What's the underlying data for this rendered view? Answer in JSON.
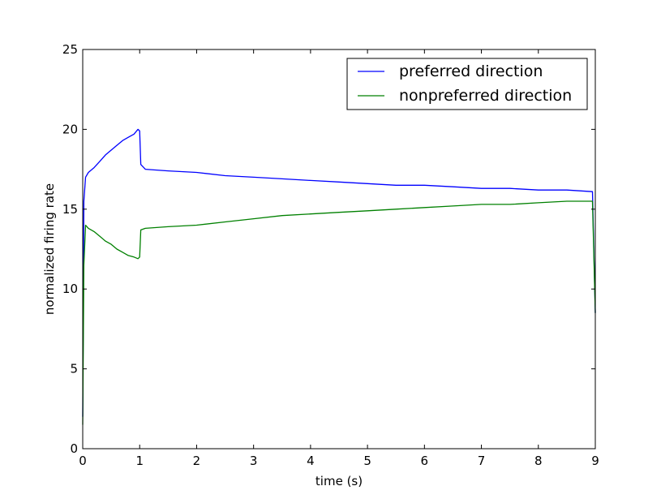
{
  "chart_data": {
    "type": "line",
    "xlabel": "time (s)",
    "ylabel": "normalized firing rate",
    "xlim": [
      0,
      9
    ],
    "ylim": [
      0,
      25
    ],
    "xticks": [
      "0",
      "1",
      "2",
      "3",
      "4",
      "5",
      "6",
      "7",
      "8",
      "9"
    ],
    "yticks": [
      "0",
      "5",
      "10",
      "15",
      "20",
      "25"
    ],
    "grid": false,
    "legend_position": "top-right",
    "series": [
      {
        "name": "preferred direction",
        "color": "#0000ff",
        "x": [
          0,
          0.02,
          0.05,
          0.1,
          0.2,
          0.3,
          0.4,
          0.5,
          0.6,
          0.7,
          0.8,
          0.9,
          0.97,
          1.0,
          1.02,
          1.1,
          1.5,
          2.0,
          2.5,
          3.0,
          3.5,
          4.0,
          4.5,
          5.0,
          5.5,
          6.0,
          6.5,
          7.0,
          7.5,
          8.0,
          8.5,
          8.95,
          9.0
        ],
        "y": [
          2.0,
          15.5,
          17.0,
          17.3,
          17.6,
          18.0,
          18.4,
          18.7,
          19.0,
          19.3,
          19.5,
          19.7,
          20.0,
          19.9,
          17.8,
          17.5,
          17.4,
          17.3,
          17.1,
          17.0,
          16.9,
          16.8,
          16.7,
          16.6,
          16.5,
          16.5,
          16.4,
          16.3,
          16.3,
          16.2,
          16.2,
          16.1,
          8.5
        ]
      },
      {
        "name": "nonpreferred direction",
        "color": "#008000",
        "x": [
          0,
          0.02,
          0.05,
          0.1,
          0.2,
          0.3,
          0.4,
          0.5,
          0.6,
          0.7,
          0.8,
          0.9,
          0.97,
          1.0,
          1.02,
          1.1,
          1.5,
          2.0,
          2.5,
          3.0,
          3.5,
          4.0,
          4.5,
          5.0,
          5.5,
          6.0,
          6.5,
          7.0,
          7.5,
          8.0,
          8.5,
          8.95,
          9.0
        ],
        "y": [
          1.5,
          11.5,
          14.0,
          13.8,
          13.6,
          13.3,
          13.0,
          12.8,
          12.5,
          12.3,
          12.1,
          12.0,
          11.9,
          12.0,
          13.7,
          13.8,
          13.9,
          14.0,
          14.2,
          14.4,
          14.6,
          14.7,
          14.8,
          14.9,
          15.0,
          15.1,
          15.2,
          15.3,
          15.3,
          15.4,
          15.5,
          15.5,
          8.5
        ]
      }
    ]
  }
}
